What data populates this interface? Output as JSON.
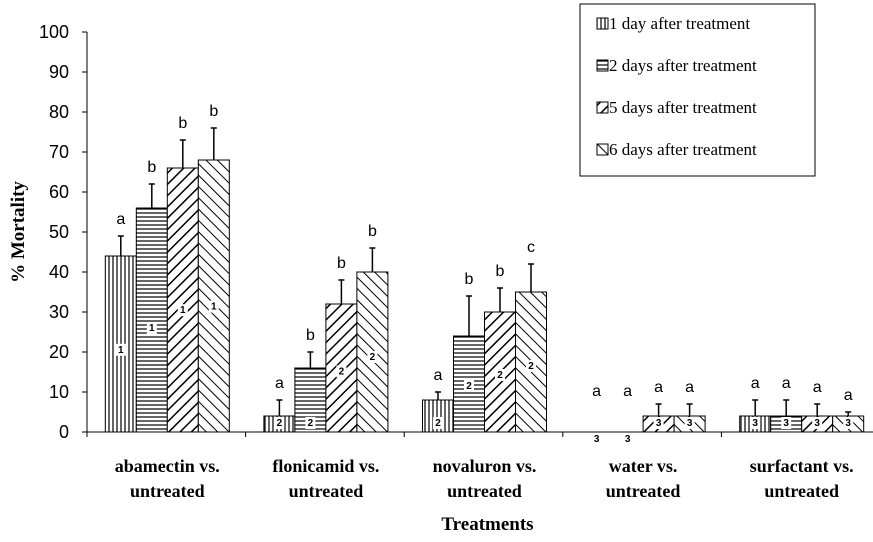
{
  "chart_data": {
    "type": "bar",
    "xlabel": "Treatments",
    "ylabel": "% Mortality",
    "ylim": [
      0,
      100
    ],
    "yticks": [
      "0",
      "10",
      "20",
      "30",
      "40",
      "50",
      "60",
      "70",
      "80",
      "90",
      "100"
    ],
    "legend_position": "top-right",
    "categories": [
      [
        "abamectin vs.",
        "untreated"
      ],
      [
        "flonicamid vs.",
        "untreated"
      ],
      [
        "novaluron vs.",
        "untreated"
      ],
      [
        "water vs.",
        "untreated"
      ],
      [
        "surfactant vs.",
        "untreated"
      ]
    ],
    "series": [
      {
        "name": "1 day after treatment",
        "pattern": "vertical",
        "values": [
          44,
          4,
          8,
          0,
          4
        ],
        "errors": [
          5,
          4,
          2,
          0,
          4
        ],
        "letters": [
          "a",
          "a",
          "a",
          "a",
          "a"
        ],
        "numbers": [
          "1",
          "2",
          "2",
          "3",
          "3"
        ]
      },
      {
        "name": "2 days after treatment",
        "pattern": "horizontal",
        "values": [
          56,
          16,
          24,
          0,
          4
        ],
        "errors": [
          6,
          4,
          10,
          0,
          4
        ],
        "letters": [
          "b",
          "b",
          "b",
          "a",
          "a"
        ],
        "numbers": [
          "1",
          "2",
          "2",
          "3",
          "3"
        ]
      },
      {
        "name": "5 days after treatment",
        "pattern": "diagonal-up",
        "values": [
          66,
          32,
          30,
          4,
          4
        ],
        "errors": [
          7,
          6,
          6,
          3,
          3
        ],
        "letters": [
          "b",
          "b",
          "b",
          "a",
          "a"
        ],
        "numbers": [
          "1",
          "2",
          "2",
          "3",
          "3"
        ]
      },
      {
        "name": "6 days after treatment",
        "pattern": "diagonal-down",
        "values": [
          68,
          40,
          35,
          4,
          4
        ],
        "errors": [
          8,
          6,
          7,
          3,
          1
        ],
        "letters": [
          "b",
          "b",
          "c",
          "a",
          "a"
        ],
        "numbers": [
          "1",
          "2",
          "2",
          "3",
          "3"
        ]
      }
    ]
  }
}
